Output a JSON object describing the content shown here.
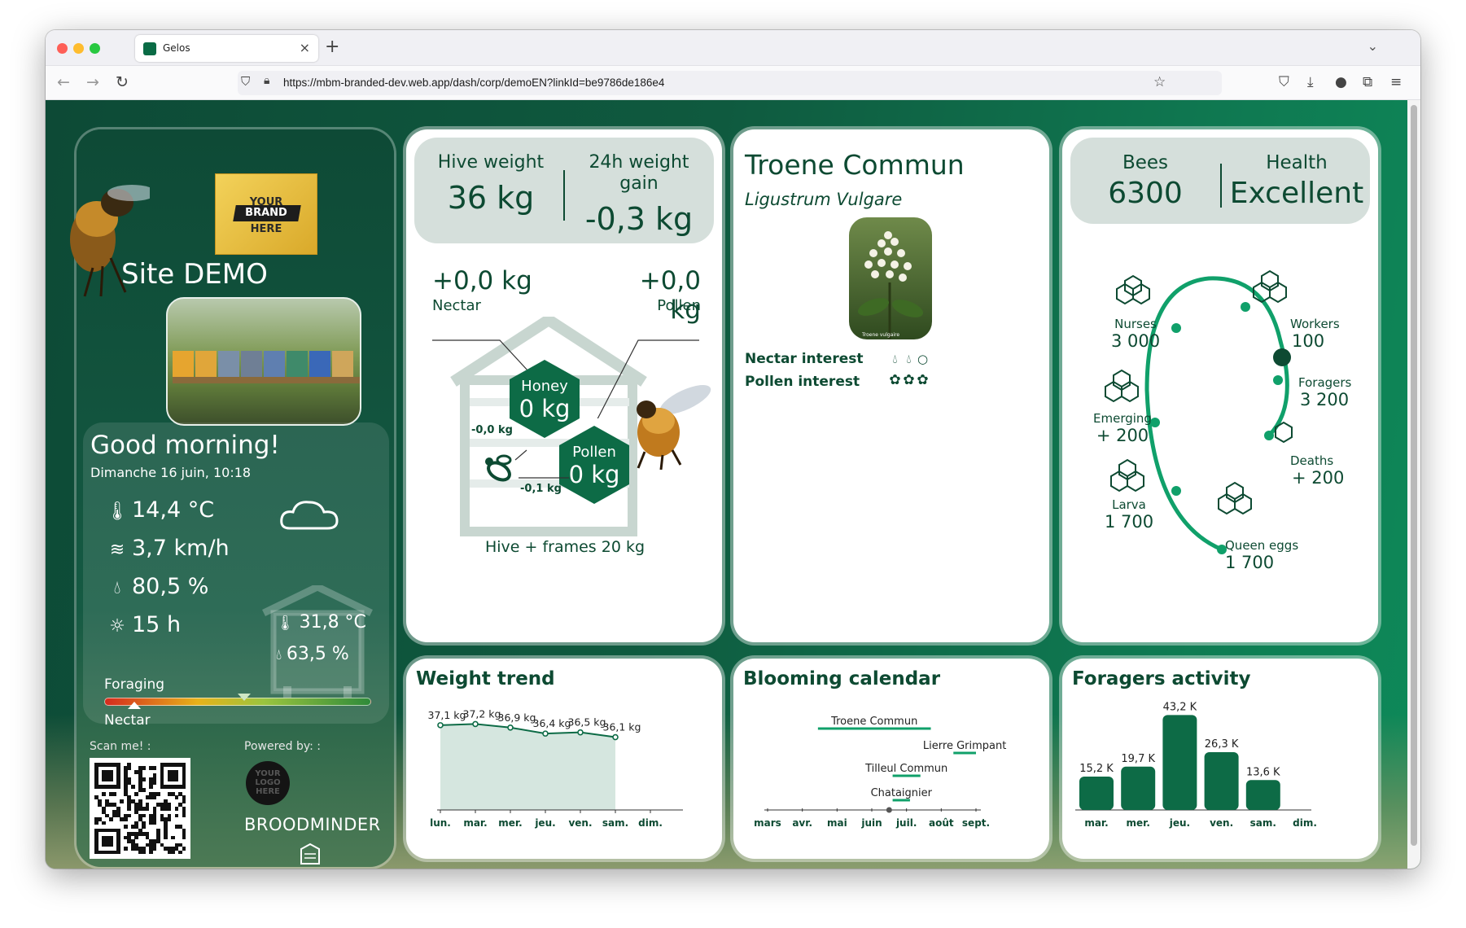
{
  "browser": {
    "tab_title": "Gelos",
    "url": "https://mbm-branded-dev.web.app/dash/corp/demoEN?linkId=be9786de186e4"
  },
  "left": {
    "brand_lines": [
      "YOUR",
      "BRAND",
      "HERE"
    ],
    "site_name": "Site DEMO",
    "greeting": "Good morning!",
    "datetime": "Dimanche 16 juin, 10:18",
    "weather": {
      "temperature": "14,4 °C",
      "wind": "3,7 km/h",
      "humidity": "80,5 %",
      "sunshine": "15 h",
      "hive_temperature": "31,8 °C",
      "hive_humidity": "63,5 %"
    },
    "foraging_label": "Foraging",
    "nectar_label": "Nectar",
    "foraging_level": 0.52,
    "nectar_level": 0.11,
    "scan_label": "Scan me! :",
    "powered_label": "Powered by: :",
    "your_logo": "YOUR LOGO HERE",
    "broodminder": "BROODMINDER"
  },
  "weight": {
    "hive_weight_label": "Hive weight",
    "hive_weight_value": "36 kg",
    "gain_label_1": "24h weight",
    "gain_label_2": "gain",
    "gain_value": "-0,3 kg",
    "nectar_gain": "+0,0 kg",
    "nectar_label": "Nectar",
    "pollen_gain": "+0,0 kg",
    "pollen_label": "Pollen",
    "honey_label": "Honey",
    "honey_value": "0 kg",
    "pollen_hex_label": "Pollen",
    "pollen_hex_value": "0 kg",
    "consumption_1": "-0,0 kg",
    "consumption_2": "-0,1 kg",
    "frames": "Hive + frames 20 kg"
  },
  "plant": {
    "name": "Troene Commun",
    "latin": "Ligustrum Vulgare",
    "photo_caption": "Troene vulgaire",
    "nectar_interest_label": "Nectar interest",
    "pollen_interest_label": "Pollen interest",
    "nectar_interest": 2,
    "pollen_interest": 3,
    "scale_max": 3
  },
  "colony": {
    "bees_label": "Bees",
    "bees_value": "6300",
    "health_label": "Health",
    "health_value": "Excellent",
    "nurses_label": "Nurses",
    "nurses_value": "3 000",
    "workers_label": "Workers",
    "workers_value": "100",
    "foragers_label": "Foragers",
    "foragers_value": "3 200",
    "emerging_label": "Emerging",
    "emerging_value": "+ 200",
    "deaths_label": "Deaths",
    "deaths_value": "+ 200",
    "larva_label": "Larva",
    "larva_value": "1 700",
    "queen_eggs_label": "Queen eggs",
    "queen_eggs_value": "1 700"
  },
  "charts": {
    "weight_title": "Weight trend",
    "blooming_title": "Blooming calendar",
    "foragers_title": "Foragers activity"
  },
  "colors": {
    "primary": "#0d6b46",
    "accent": "#10a06a",
    "dark_green": "#0d4a32",
    "light_box": "#d5dfdb"
  },
  "chart_data": [
    {
      "type": "area",
      "categories": [
        "lun.",
        "mar.",
        "mer.",
        "jeu.",
        "ven.",
        "sam.",
        "dim."
      ],
      "values": [
        37.1,
        37.2,
        36.9,
        36.4,
        36.5,
        36.1,
        null
      ],
      "labels": [
        "37,1 kg",
        "37,2 kg",
        "36,9 kg",
        "36,4 kg",
        "36,5 kg",
        "36,1 kg",
        ""
      ],
      "ylim": [
        30,
        39
      ],
      "grid": false
    },
    {
      "type": "table",
      "months": [
        "mars",
        "avr.",
        "mai",
        "juin",
        "juil.",
        "août",
        "sept."
      ],
      "today_month": 3.5,
      "items": [
        {
          "name": "Troene Commun",
          "start": 1.45,
          "end": 4.7
        },
        {
          "name": "Lierre Grimpant",
          "start": 5.35,
          "end": 6.0
        },
        {
          "name": "Tilleul Commun",
          "start": 3.6,
          "end": 4.4
        },
        {
          "name": "Chataignier",
          "start": 3.6,
          "end": 4.1
        }
      ]
    },
    {
      "type": "bar",
      "categories": [
        "mar.",
        "mer.",
        "jeu.",
        "ven.",
        "sam.",
        "dim."
      ],
      "values": [
        15.2,
        19.7,
        43.2,
        26.3,
        13.6,
        null
      ],
      "labels": [
        "15,2 K",
        "19,7 K",
        "43,2 K",
        "26,3 K",
        "13,6 K",
        ""
      ],
      "ylim": [
        0,
        50
      ],
      "grid": false
    }
  ]
}
